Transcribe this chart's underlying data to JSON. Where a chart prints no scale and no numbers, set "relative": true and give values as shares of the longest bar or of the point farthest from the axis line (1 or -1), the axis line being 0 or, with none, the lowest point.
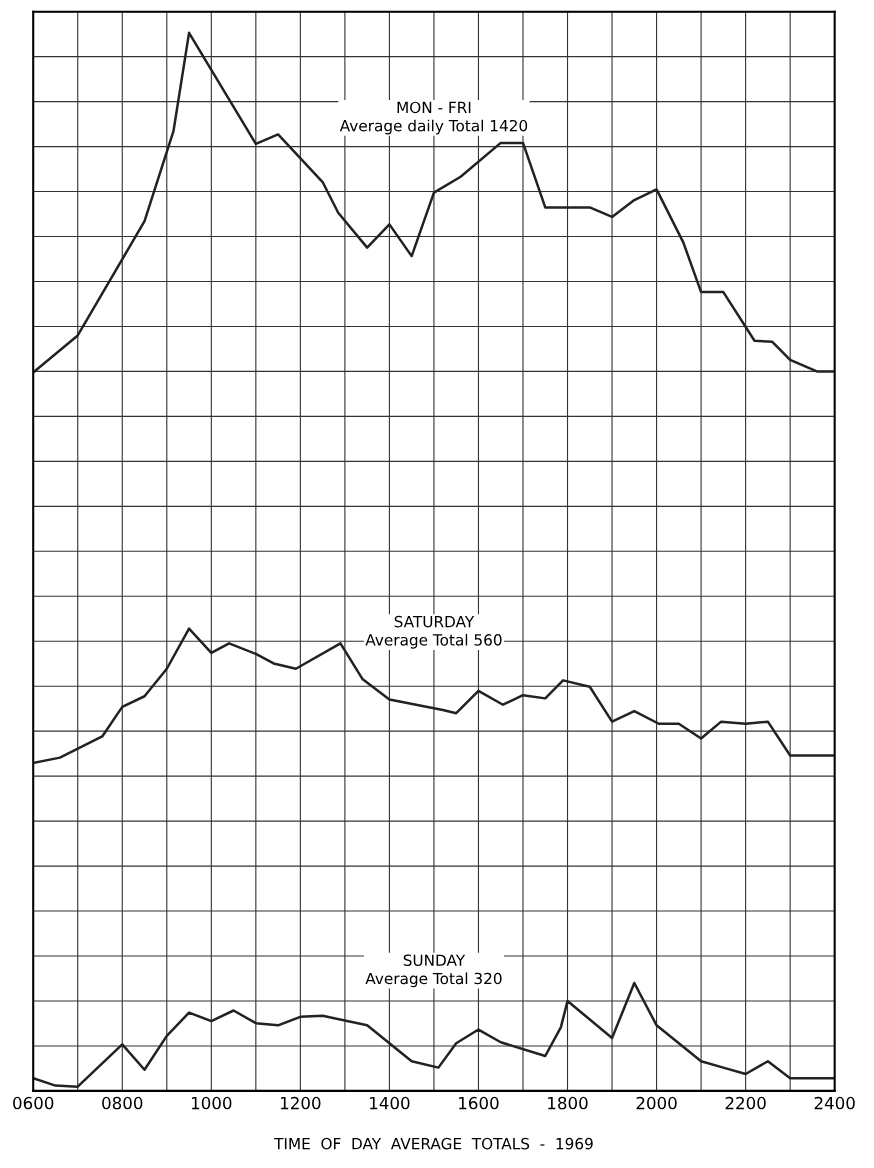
{
  "chart_data": {
    "type": "line",
    "relative": true,
    "xlabel": "TIME  OF  DAY  AVERAGE  TOTALS  -  1969",
    "grid": true,
    "xlim": [
      600,
      2400
    ],
    "xticks": [
      {
        "value": 600,
        "label": "0600"
      },
      {
        "value": 700,
        "label": null
      },
      {
        "value": 800,
        "label": "0800"
      },
      {
        "value": 900,
        "label": null
      },
      {
        "value": 1000,
        "label": "1000"
      },
      {
        "value": 1100,
        "label": null
      },
      {
        "value": 1200,
        "label": "1200"
      },
      {
        "value": 1300,
        "label": null
      },
      {
        "value": 1400,
        "label": "1400"
      },
      {
        "value": 1500,
        "label": null
      },
      {
        "value": 1600,
        "label": "1600"
      },
      {
        "value": 1700,
        "label": null
      },
      {
        "value": 1800,
        "label": "1800"
      },
      {
        "value": 1900,
        "label": null
      },
      {
        "value": 2000,
        "label": "2000"
      },
      {
        "value": 2100,
        "label": null
      },
      {
        "value": 2200,
        "label": "2200"
      },
      {
        "value": 2300,
        "label": null
      },
      {
        "value": 2400,
        "label": "2400"
      }
    ],
    "series": [
      {
        "name": "MON - FRI\nAverage daily Total 1420",
        "color": "#222222",
        "x": [
          600,
          700,
          850,
          915,
          950,
          1100,
          1150,
          1250,
          1285,
          1350,
          1400,
          1450,
          1500,
          1560,
          1650,
          1700,
          1750,
          1850,
          1900,
          1950,
          2000,
          2060,
          2100,
          2150,
          2220,
          2260,
          2300,
          2360,
          2400
        ],
        "values": [
          0.679,
          0.714,
          0.822,
          0.907,
          1.0,
          0.895,
          0.904,
          0.859,
          0.83,
          0.797,
          0.819,
          0.789,
          0.849,
          0.864,
          0.896,
          0.896,
          0.835,
          0.835,
          0.826,
          0.842,
          0.852,
          0.802,
          0.755,
          0.755,
          0.709,
          0.708,
          0.691,
          0.68,
          0.68
        ]
      },
      {
        "name": "SATURDAY\nAverage Total 560",
        "color": "#222222",
        "x": [
          600,
          660,
          755,
          800,
          850,
          900,
          950,
          1000,
          1040,
          1100,
          1140,
          1190,
          1290,
          1340,
          1400,
          1520,
          1550,
          1600,
          1655,
          1700,
          1750,
          1790,
          1850,
          1900,
          1950,
          2005,
          2050,
          2100,
          2145,
          2200,
          2250,
          2300,
          2400
        ],
        "values": [
          0.31,
          0.315,
          0.335,
          0.363,
          0.373,
          0.399,
          0.437,
          0.414,
          0.423,
          0.413,
          0.404,
          0.399,
          0.423,
          0.389,
          0.37,
          0.36,
          0.357,
          0.378,
          0.365,
          0.374,
          0.371,
          0.388,
          0.382,
          0.349,
          0.359,
          0.347,
          0.347,
          0.333,
          0.349,
          0.347,
          0.349,
          0.317,
          0.317
        ]
      },
      {
        "name": "SUNDAY\nAverage Total 320",
        "color": "#222222",
        "x": [
          600,
          650,
          700,
          800,
          850,
          900,
          950,
          1000,
          1050,
          1100,
          1150,
          1200,
          1250,
          1350,
          1450,
          1510,
          1550,
          1600,
          1650,
          1750,
          1785,
          1800,
          1900,
          1950,
          2000,
          2100,
          2150,
          2200,
          2250,
          2300,
          2400
        ],
        "values": [
          0.012,
          0.005,
          0.004,
          0.044,
          0.02,
          0.052,
          0.074,
          0.066,
          0.076,
          0.064,
          0.062,
          0.07,
          0.071,
          0.062,
          0.028,
          0.022,
          0.045,
          0.058,
          0.046,
          0.033,
          0.06,
          0.085,
          0.05,
          0.102,
          0.062,
          0.028,
          0.022,
          0.016,
          0.028,
          0.012,
          0.012
        ]
      }
    ]
  }
}
